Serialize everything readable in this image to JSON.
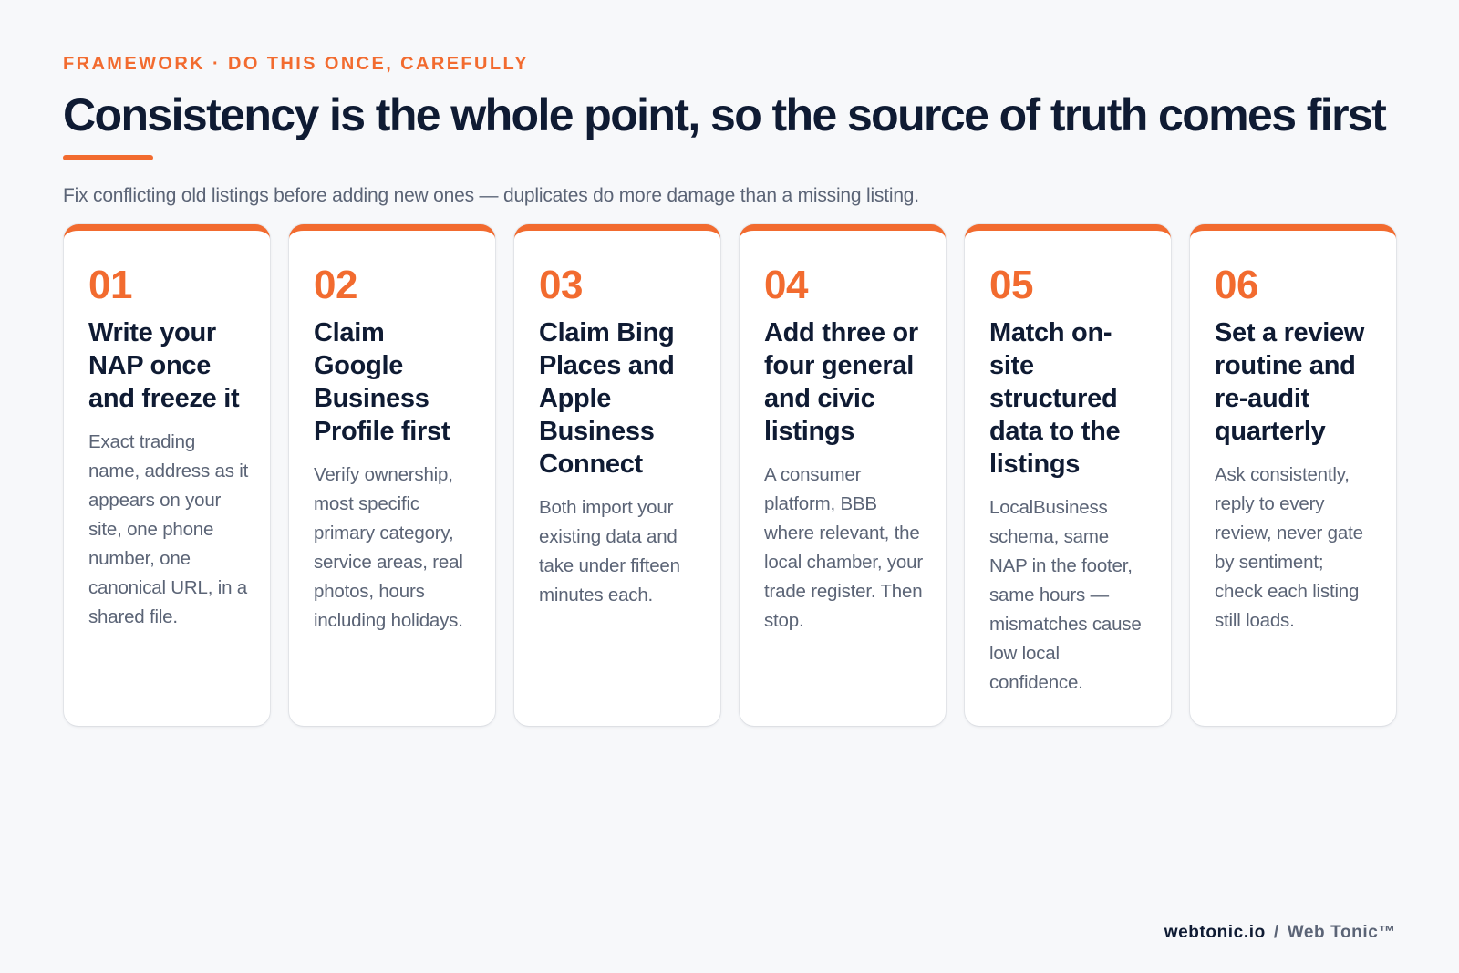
{
  "header": {
    "eyebrow": "FRAMEWORK · DO THIS ONCE, CAREFULLY",
    "title": "Consistency is the whole point, so the source of truth comes first",
    "subtitle": "Fix conflicting old listings before adding new ones — duplicates do more damage than a missing listing."
  },
  "cards": [
    {
      "number": "01",
      "title": "Write your NAP once and freeze it",
      "body": "Exact trading name, address as it appears on your site, one phone number, one canonical URL, in a shared file."
    },
    {
      "number": "02",
      "title": "Claim Google Business Profile first",
      "body": "Verify ownership, most specific primary category, service areas, real photos, hours including holidays."
    },
    {
      "number": "03",
      "title": "Claim Bing Places and Apple Business Connect",
      "body": "Both import your existing data and take under fifteen minutes each."
    },
    {
      "number": "04",
      "title": "Add three or four general and civic listings",
      "body": "A consumer platform, BBB where relevant, the local chamber, your trade register. Then stop."
    },
    {
      "number": "05",
      "title": "Match on-site structured data to the listings",
      "body": "LocalBusiness schema, same NAP in the footer, same hours — mismatches cause low local confidence."
    },
    {
      "number": "06",
      "title": "Set a review routine and re-audit quarterly",
      "body": "Ask consistently, reply to every review, never gate by sentiment; check each listing still loads."
    }
  ],
  "footer": {
    "domain": "webtonic.io",
    "separator": "/",
    "brand": "Web Tonic™"
  },
  "colors": {
    "accent": "#f26b2f",
    "heading": "#0f1b33",
    "muted": "#5b6476",
    "background": "#f7f8fa",
    "card": "#ffffff"
  }
}
